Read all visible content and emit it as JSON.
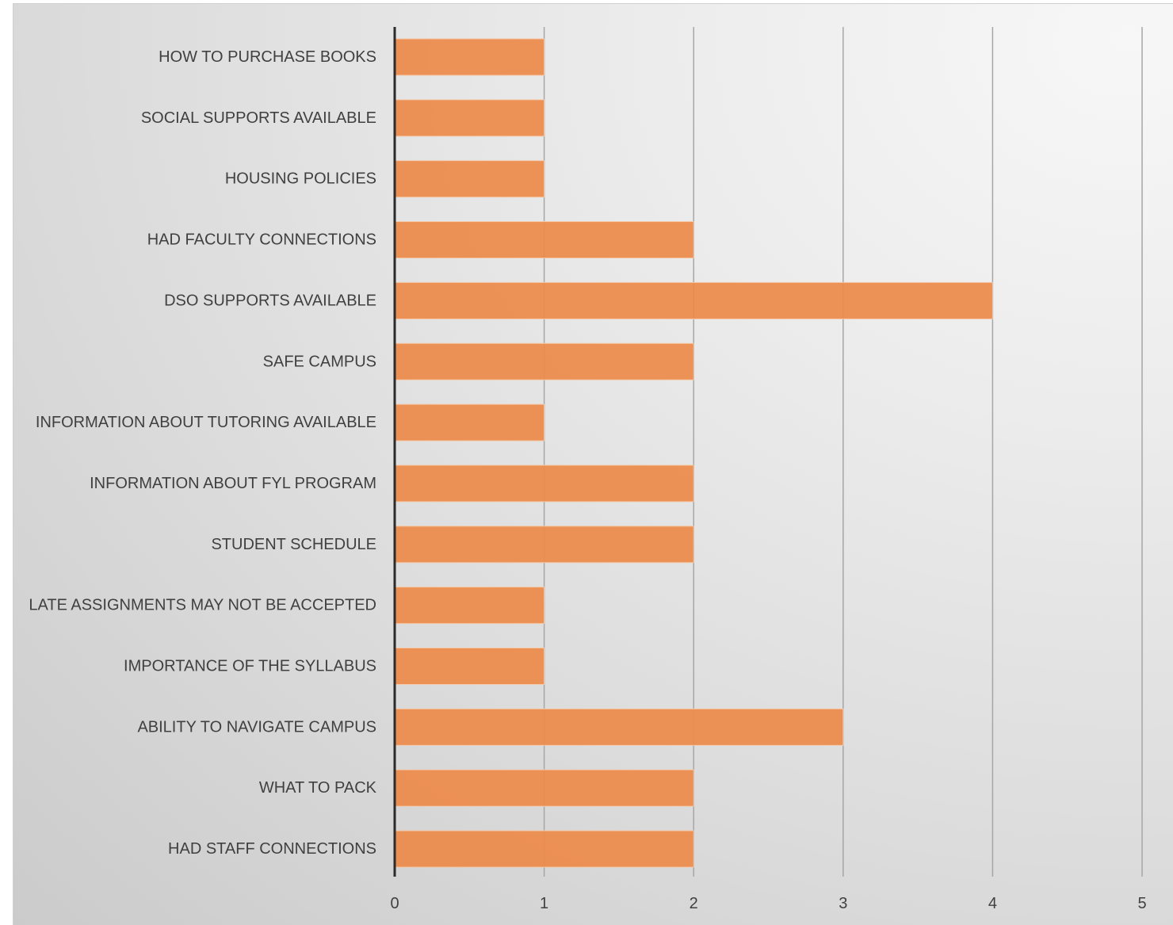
{
  "chart_data": {
    "type": "bar",
    "orientation": "horizontal",
    "title": "",
    "xlabel": "",
    "ylabel": "",
    "xlim": [
      0,
      5
    ],
    "x_ticks": [
      "0",
      "1",
      "2",
      "3",
      "4",
      "5"
    ],
    "grid": "vertical",
    "legend": "none",
    "bar_color": "#ED8B4B",
    "categories": [
      "HOW TO PURCHASE BOOKS",
      "SOCIAL SUPPORTS AVAILABLE",
      "HOUSING POLICIES",
      "HAD FACULTY CONNECTIONS",
      "DSO SUPPORTS AVAILABLE",
      "SAFE CAMPUS",
      "INFORMATION ABOUT TUTORING AVAILABLE",
      "INFORMATION ABOUT FYL PROGRAM",
      "STUDENT SCHEDULE",
      "LATE ASSIGNMENTS MAY NOT BE ACCEPTED",
      "IMPORTANCE OF THE SYLLABUS",
      "ABILITY TO NAVIGATE CAMPUS",
      "WHAT TO PACK",
      "HAD STAFF CONNECTIONS"
    ],
    "values": [
      1,
      1,
      1,
      2,
      4,
      2,
      1,
      2,
      2,
      1,
      1,
      3,
      2,
      2
    ]
  }
}
